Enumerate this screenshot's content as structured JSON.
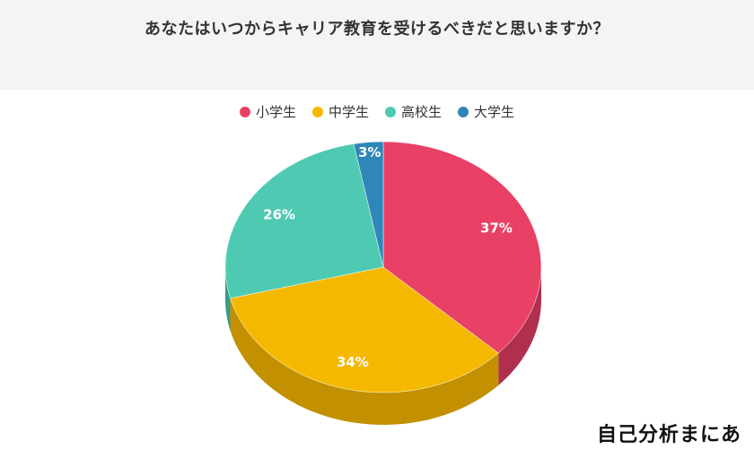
{
  "title": "あなたはいつからキャリア教育を受けるべきだと思いますか？",
  "logo_text": "自己分析まにあ",
  "chart_data": {
    "type": "pie",
    "title": "あなたはいつからキャリア教育を受けるべきだと思いますか？",
    "labels": [
      "小学生",
      "中学生",
      "高校生",
      "大学生"
    ],
    "values": [
      37,
      34,
      26,
      3
    ],
    "value_labels": [
      "37%",
      "34%",
      "26%",
      "3%"
    ],
    "colors": [
      "#e84165",
      "#f5b800",
      "#4ecab3",
      "#2f86b8"
    ],
    "side_colors": [
      "#b02f4c",
      "#c29000",
      "#3a9a88",
      "#236690"
    ],
    "legend_position": "top",
    "style": "3d"
  }
}
